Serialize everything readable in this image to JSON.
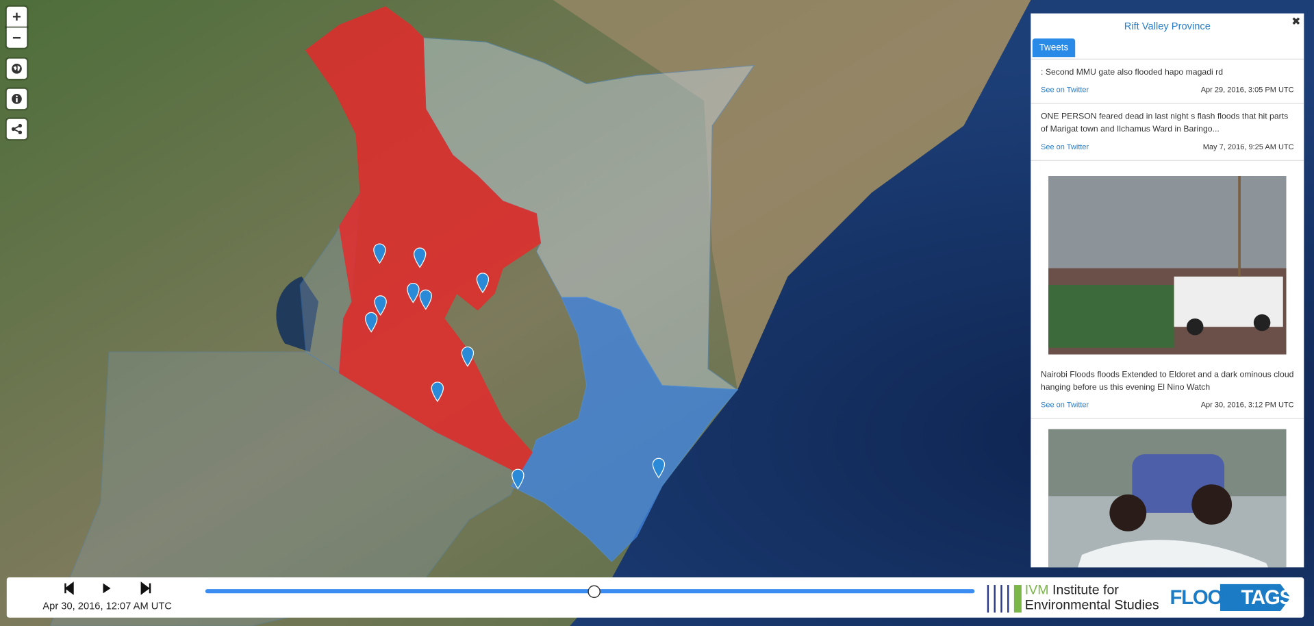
{
  "controls": {
    "zoom_in": "+",
    "zoom_out": "−"
  },
  "panel": {
    "title": "Rift Valley Province",
    "close": "✖",
    "tab": "Tweets",
    "tweets": [
      {
        "text": ": Second MMU gate also flooded hapo magadi rd",
        "link": "See on Twitter",
        "date": "Apr 29, 2016, 3:05 PM UTC"
      },
      {
        "text": "ONE PERSON feared dead in last night s flash floods that hit parts of Marigat town and Ilchamus Ward in Baringo...",
        "link": "See on Twitter",
        "date": "May 7, 2016, 9:25 AM UTC"
      },
      {
        "text": "Nairobi Floods floods Extended to Eldoret and a dark ominous cloud hanging before us this evening El Nino Watch",
        "link": "See on Twitter",
        "date": "Apr 30, 2016, 3:12 PM UTC"
      }
    ]
  },
  "timeline": {
    "date": "Apr 30, 2016, 12:07 AM UTC"
  },
  "logos": {
    "ivm": "IVM",
    "ivm_line1": "Institute for",
    "ivm_line2": "Environmental Studies",
    "flood": "FLOOD",
    "tags": "TAGS",
    "reg": "®"
  }
}
